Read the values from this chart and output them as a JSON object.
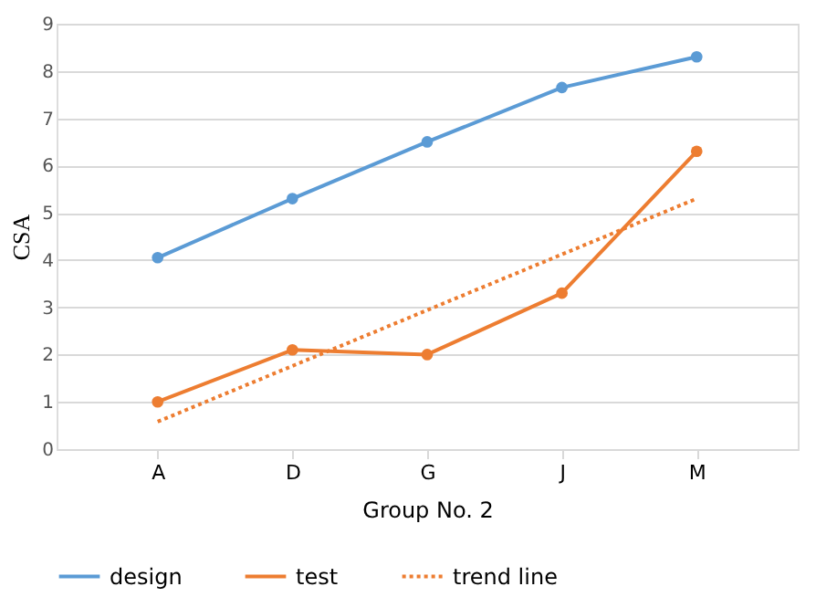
{
  "chart_data": {
    "type": "line",
    "xlabel": "Group No. 2",
    "ylabel": "CSA",
    "categories": [
      "A",
      "D",
      "G",
      "J",
      "M"
    ],
    "series": [
      {
        "name": "design",
        "color": "#5b9bd5",
        "values": [
          4.05,
          5.3,
          6.5,
          7.65,
          8.3
        ],
        "marker": "circle",
        "line_style": "solid"
      },
      {
        "name": "test",
        "color": "#ed7d31",
        "values": [
          1.0,
          2.1,
          2.0,
          3.3,
          6.3
        ],
        "marker": "circle",
        "line_style": "solid"
      },
      {
        "name": "trend line",
        "color": "#ed7d31",
        "values": [
          0.58,
          1.76,
          2.94,
          4.12,
          5.3
        ],
        "marker": "none",
        "line_style": "dotted"
      }
    ],
    "ylim": [
      0,
      9
    ],
    "yticks": [
      0,
      1,
      2,
      3,
      4,
      5,
      6,
      7,
      8,
      9
    ],
    "grid": "y",
    "legend": "bottom"
  }
}
